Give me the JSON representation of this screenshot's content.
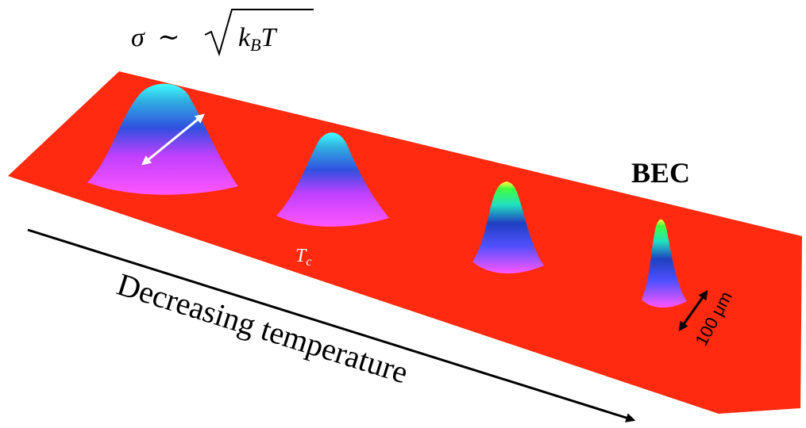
{
  "formula": {
    "sigma": "σ",
    "relation": "∼",
    "k": "k",
    "subscript": "B",
    "temperature": "T"
  },
  "labels": {
    "bec": "BEC",
    "critical": {
      "symbol": "T",
      "subscript": "c"
    },
    "axis": "Decreasing temperature",
    "scale": "100 μm"
  }
}
